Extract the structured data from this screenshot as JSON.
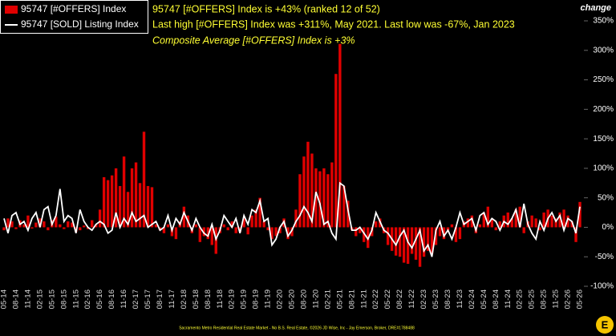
{
  "chart_data": {
    "type": "bar-line",
    "y_axis_title": "change",
    "annotations": [
      "95747 [#OFFERS] Index is +43% (ranked 12 of 52)",
      "Last high [#OFFERS] Index was +311%, May 2021. Last low was -67%, Jan 2023",
      "Composite Average [#OFFERS] Index is +3%"
    ],
    "footer": "Sacramento Metro Residential Real Estate Market - No B.S. Real Estate, ©2026 JD Wise, Inc - Jay Emerson, Broker, DRE#1788488",
    "categories": [
      "05-14",
      null,
      null,
      "08-14",
      null,
      null,
      "11-14",
      null,
      null,
      "02-15",
      null,
      null,
      "05-15",
      null,
      null,
      "08-15",
      null,
      null,
      "11-15",
      null,
      null,
      "02-16",
      null,
      null,
      "05-16",
      null,
      null,
      "08-16",
      null,
      null,
      "11-16",
      null,
      null,
      "02-17",
      null,
      null,
      "05-17",
      null,
      null,
      "08-17",
      null,
      null,
      "11-17",
      null,
      null,
      "02-18",
      null,
      null,
      "05-18",
      null,
      null,
      "08-18",
      null,
      null,
      "11-18",
      null,
      null,
      "02-19",
      null,
      null,
      "05-19",
      null,
      null,
      "08-19",
      null,
      null,
      "11-19",
      null,
      null,
      "02-20",
      null,
      null,
      "05-20",
      null,
      null,
      "08-20",
      null,
      null,
      "11-20",
      null,
      null,
      "02-21",
      null,
      null,
      "05-21",
      null,
      null,
      "08-21",
      null,
      null,
      "11-21",
      null,
      null,
      "02-22",
      null,
      null,
      "05-22",
      null,
      null,
      "08-22",
      null,
      null,
      "11-22",
      null,
      null,
      "02-23",
      null,
      null,
      "05-23",
      null,
      null,
      "08-23",
      null,
      null,
      "11-23",
      null,
      null,
      "02-24",
      null,
      null,
      "05-24",
      null,
      null,
      "08-24",
      null,
      null,
      "11-24",
      null,
      null,
      "02-25",
      null,
      null,
      "05-25",
      null,
      null,
      "08-25",
      null,
      null,
      "11-25",
      null,
      null,
      "02-26",
      null,
      null,
      "05-26"
    ],
    "series": [
      {
        "name": "95747 [#OFFERS] Index",
        "color": "#e00000",
        "kind": "bar",
        "values": [
          -5,
          15,
          10,
          -3,
          12,
          5,
          20,
          -2,
          8,
          15,
          10,
          -5,
          12,
          18,
          5,
          -3,
          10,
          8,
          -8,
          -5,
          3,
          -3,
          12,
          5,
          30,
          85,
          80,
          88,
          100,
          70,
          120,
          60,
          100,
          110,
          75,
          162,
          70,
          68,
          5,
          -5,
          -10,
          5,
          -15,
          -20,
          10,
          35,
          20,
          -10,
          5,
          -25,
          -15,
          -20,
          -30,
          -45,
          -10,
          5,
          -5,
          10,
          -10,
          -8,
          15,
          -12,
          20,
          30,
          50,
          10,
          -5,
          -20,
          -15,
          -10,
          15,
          -20,
          -15,
          30,
          90,
          120,
          145,
          125,
          100,
          95,
          100,
          90,
          110,
          260,
          311,
          70,
          45,
          -5,
          -15,
          -10,
          -25,
          -35,
          -15,
          10,
          15,
          -10,
          -30,
          -40,
          -48,
          -50,
          -60,
          -62,
          -45,
          -55,
          -67,
          -50,
          -40,
          -45,
          -30,
          -15,
          -20,
          -5,
          5,
          -25,
          -20,
          10,
          15,
          20,
          -10,
          5,
          25,
          35,
          15,
          -5,
          10,
          20,
          25,
          15,
          30,
          35,
          -10,
          10,
          20,
          15,
          -5,
          25,
          30,
          20,
          15,
          25,
          30,
          20,
          10,
          -25,
          43
        ]
      },
      {
        "name": "95747 [SOLD] Listing Index",
        "color": "#ffffff",
        "kind": "line",
        "values": [
          15,
          -10,
          20,
          25,
          5,
          10,
          -5,
          15,
          25,
          0,
          30,
          35,
          5,
          20,
          65,
          10,
          20,
          15,
          -10,
          30,
          10,
          0,
          -5,
          5,
          10,
          5,
          -10,
          -5,
          25,
          0,
          15,
          5,
          25,
          10,
          15,
          20,
          0,
          5,
          10,
          -5,
          0,
          20,
          -5,
          15,
          5,
          25,
          10,
          -5,
          15,
          0,
          -10,
          -15,
          5,
          -20,
          -5,
          20,
          10,
          0,
          15,
          -10,
          20,
          5,
          30,
          25,
          45,
          10,
          15,
          -30,
          -20,
          0,
          10,
          -15,
          -5,
          10,
          20,
          35,
          25,
          10,
          60,
          40,
          5,
          10,
          -10,
          -20,
          75,
          70,
          30,
          -5,
          -5,
          0,
          -10,
          -20,
          -5,
          25,
          10,
          -5,
          -10,
          -20,
          -30,
          -15,
          -5,
          -25,
          -35,
          -20,
          -5,
          -40,
          -30,
          -50,
          -5,
          10,
          -15,
          -5,
          -20,
          0,
          25,
          5,
          10,
          15,
          -5,
          20,
          25,
          5,
          15,
          10,
          -5,
          10,
          5,
          15,
          30,
          0,
          40,
          5,
          -10,
          -20,
          10,
          -5,
          15,
          25,
          10,
          20,
          -5,
          15,
          10,
          -10,
          35
        ]
      }
    ],
    "ylim": [
      -100,
      350
    ],
    "yticks": [
      {
        "value": -100,
        "label": "-100%"
      },
      {
        "value": -50,
        "label": "-50%"
      },
      {
        "value": 0,
        "label": "0%"
      },
      {
        "value": 50,
        "label": "50%"
      },
      {
        "value": 100,
        "label": "100%"
      },
      {
        "value": 150,
        "label": "150%"
      },
      {
        "value": 200,
        "label": "200%"
      },
      {
        "value": 250,
        "label": "250%"
      },
      {
        "value": 300,
        "label": "300%"
      },
      {
        "value": 350,
        "label": "350%"
      }
    ]
  }
}
